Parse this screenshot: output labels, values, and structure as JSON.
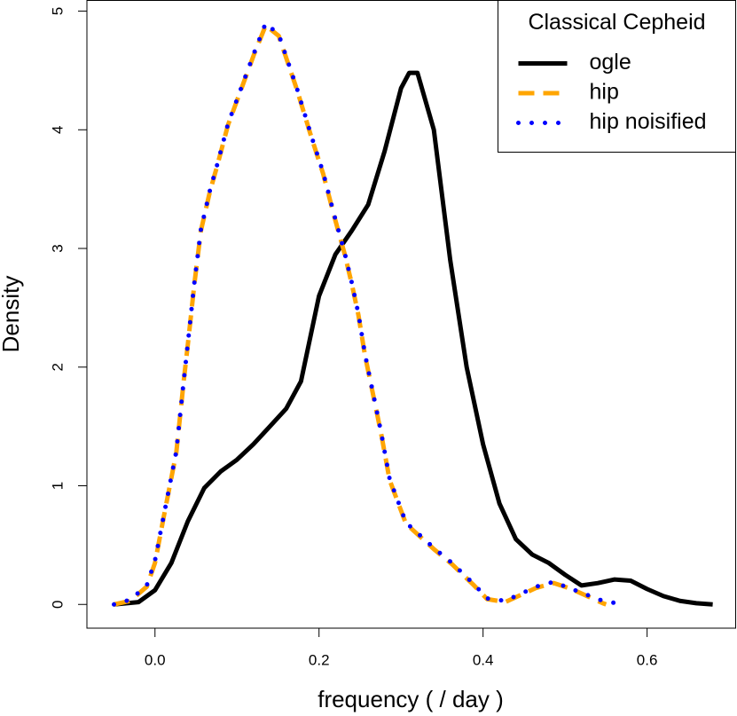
{
  "chart_data": {
    "type": "line",
    "xlabel": "frequency ( / day )",
    "ylabel": "Density",
    "xlim": [
      -0.083,
      0.708
    ],
    "ylim": [
      -0.2,
      5.09
    ],
    "xticks": [
      {
        "value": 0,
        "label": "0.0"
      },
      0.2,
      0.4,
      0.6
    ],
    "yticks": [
      0,
      1,
      2,
      3,
      4,
      5
    ],
    "legend": "topright",
    "legend_title": "Classical Cepheid",
    "series": [
      {
        "name": "ogle",
        "color": "#000000",
        "line_style": "solid",
        "x": [
          -0.05,
          -0.02,
          0.0,
          0.02,
          0.04,
          0.06,
          0.08,
          0.1,
          0.12,
          0.14,
          0.16,
          0.178,
          0.2,
          0.22,
          0.24,
          0.26,
          0.28,
          0.3,
          0.31,
          0.32,
          0.34,
          0.36,
          0.38,
          0.4,
          0.42,
          0.44,
          0.46,
          0.48,
          0.5,
          0.52,
          0.54,
          0.56,
          0.58,
          0.6,
          0.62,
          0.64,
          0.66,
          0.68
        ],
        "values": [
          0,
          0.02,
          0.12,
          0.35,
          0.7,
          0.98,
          1.12,
          1.22,
          1.35,
          1.5,
          1.65,
          1.88,
          2.6,
          2.95,
          3.15,
          3.37,
          3.82,
          4.35,
          4.48,
          4.48,
          4.0,
          2.9,
          2.0,
          1.35,
          0.85,
          0.55,
          0.42,
          0.35,
          0.25,
          0.16,
          0.18,
          0.21,
          0.2,
          0.13,
          0.07,
          0.03,
          0.01,
          0
        ]
      },
      {
        "name": "hip",
        "color": "#ffa500",
        "line_style": "dashed",
        "x": [
          -0.05,
          -0.03,
          -0.01,
          0.0,
          0.011,
          0.026,
          0.035,
          0.041,
          0.048,
          0.056,
          0.067,
          0.076,
          0.089,
          0.105,
          0.121,
          0.135,
          0.151,
          0.173,
          0.191,
          0.205,
          0.219,
          0.231,
          0.24,
          0.248,
          0.256,
          0.265,
          0.276,
          0.286,
          0.306,
          0.341,
          0.362,
          0.389,
          0.405,
          0.427,
          0.465,
          0.486,
          0.508,
          0.546,
          0.55
        ],
        "values": [
          0,
          0.03,
          0.15,
          0.35,
          0.75,
          1.28,
          1.88,
          2.25,
          2.7,
          3.15,
          3.48,
          3.7,
          4.04,
          4.34,
          4.64,
          4.88,
          4.79,
          4.34,
          3.93,
          3.63,
          3.26,
          2.96,
          2.7,
          2.44,
          2.1,
          1.8,
          1.43,
          1.05,
          0.68,
          0.46,
          0.34,
          0.16,
          0.045,
          0.02,
          0.14,
          0.18,
          0.13,
          0.01,
          0
        ]
      },
      {
        "name": "hip noisified",
        "color": "#0000ff",
        "line_style": "dotted",
        "x": [
          -0.05,
          -0.03,
          -0.01,
          0.0,
          0.011,
          0.026,
          0.035,
          0.041,
          0.048,
          0.056,
          0.067,
          0.076,
          0.089,
          0.105,
          0.121,
          0.135,
          0.151,
          0.173,
          0.191,
          0.205,
          0.219,
          0.231,
          0.24,
          0.248,
          0.256,
          0.265,
          0.276,
          0.286,
          0.306,
          0.341,
          0.362,
          0.389,
          0.405,
          0.427,
          0.465,
          0.486,
          0.508,
          0.546,
          0.571
        ],
        "values": [
          0,
          0.04,
          0.16,
          0.37,
          0.76,
          1.29,
          1.88,
          2.26,
          2.71,
          3.16,
          3.49,
          3.71,
          4.05,
          4.35,
          4.65,
          4.9,
          4.8,
          4.35,
          3.94,
          3.64,
          3.27,
          2.97,
          2.71,
          2.45,
          2.11,
          1.81,
          1.44,
          1.06,
          0.69,
          0.47,
          0.35,
          0.17,
          0.05,
          0.03,
          0.15,
          0.19,
          0.13,
          0.03,
          0
        ]
      }
    ]
  }
}
